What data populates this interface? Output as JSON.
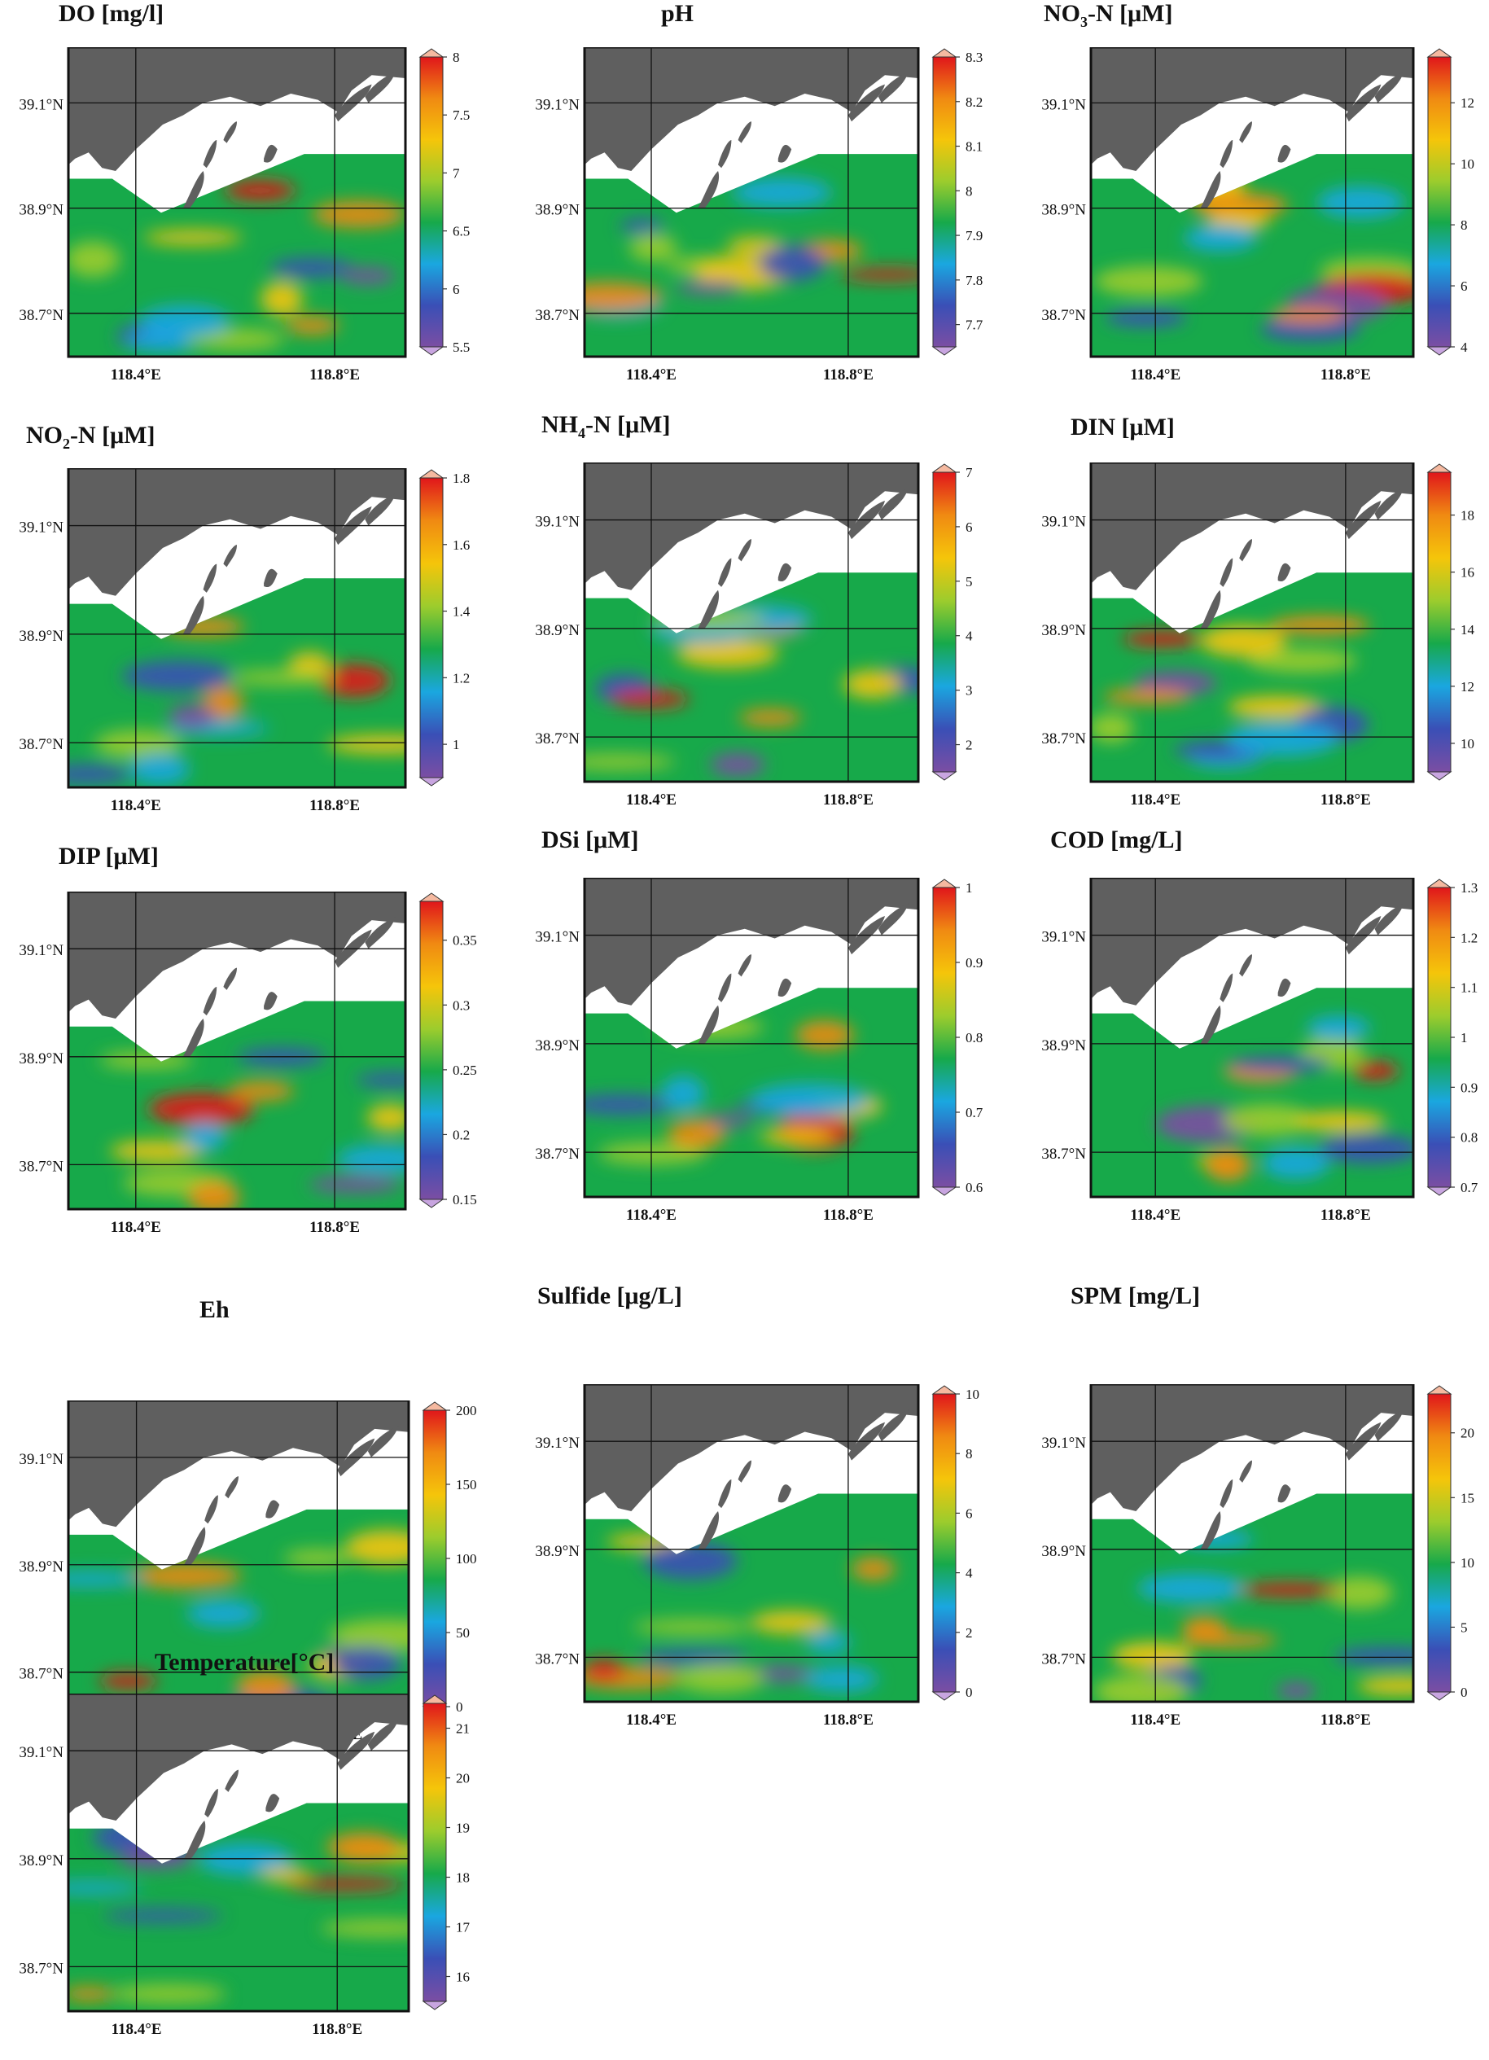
{
  "figure": {
    "colormap": [
      "#7b4ea3",
      "#3a4fb6",
      "#1aa7e0",
      "#17a94a",
      "#9ccc2d",
      "#f5c50a",
      "#f08a12",
      "#e0161b"
    ],
    "land_color": "#5f5f5f",
    "grid_color": "#111111",
    "lat_labels": [
      "39.1°N",
      "38.9°N",
      "38.7°N"
    ],
    "lon_labels": [
      "118.4°E",
      "118.8°E"
    ]
  },
  "panels": [
    {
      "id": "do",
      "title": "DO [mg/l]",
      "title_main": "DO [mg/l]",
      "title_sub": "",
      "title_rest": "",
      "colorbar_ticks": [
        "8",
        "7.5",
        "7",
        "6.5",
        "6",
        "5.5"
      ],
      "range": [
        5.5,
        8.0
      ]
    },
    {
      "id": "ph",
      "title": "pH",
      "title_main": "pH",
      "title_sub": "",
      "title_rest": "",
      "colorbar_ticks": [
        "8.3",
        "8.2",
        "8.1",
        "8",
        "7.9",
        "7.8",
        "7.7"
      ],
      "range": [
        7.65,
        8.3
      ]
    },
    {
      "id": "no3",
      "title": "NO3-N [μM]",
      "title_main": "NO",
      "title_sub": "3",
      "title_rest": "-N [μM]",
      "colorbar_ticks": [
        "12",
        "10",
        "8",
        "6",
        "4"
      ],
      "range": [
        4,
        13.5
      ]
    },
    {
      "id": "no2",
      "title": "NO2-N [μM]",
      "title_main": "NO",
      "title_sub": "2",
      "title_rest": "-N [μM]",
      "colorbar_ticks": [
        "1.8",
        "1.6",
        "1.4",
        "1.2",
        "1"
      ],
      "range": [
        0.9,
        1.8
      ]
    },
    {
      "id": "nh4",
      "title": "NH4-N [μM]",
      "title_main": "NH",
      "title_sub": "4",
      "title_rest": "-N [μM]",
      "colorbar_ticks": [
        "7",
        "6",
        "5",
        "4",
        "3",
        "2"
      ],
      "range": [
        1.5,
        7
      ]
    },
    {
      "id": "din",
      "title": "DIN [μM]",
      "title_main": "DIN [μM]",
      "title_sub": "",
      "title_rest": "",
      "colorbar_ticks": [
        "18",
        "16",
        "14",
        "12",
        "10"
      ],
      "range": [
        9,
        19.5
      ]
    },
    {
      "id": "dip",
      "title": "DIP [μM]",
      "title_main": "DIP [μM]",
      "title_sub": "",
      "title_rest": "",
      "colorbar_ticks": [
        "0.35",
        "0.3",
        "0.25",
        "0.2",
        "0.15"
      ],
      "range": [
        0.15,
        0.38
      ]
    },
    {
      "id": "dsi",
      "title": "DSi [μM]",
      "title_main": "DSi [μM]",
      "title_sub": "",
      "title_rest": "",
      "colorbar_ticks": [
        "1",
        "0.9",
        "0.8",
        "0.7",
        "0.6"
      ],
      "range": [
        0.6,
        1.0
      ]
    },
    {
      "id": "cod",
      "title": "COD [mg/L]",
      "title_main": "COD [mg/L]",
      "title_sub": "",
      "title_rest": "",
      "colorbar_ticks": [
        "1.3",
        "1.2",
        "1.1",
        "1",
        "0.9",
        "0.8",
        "0.7"
      ],
      "range": [
        0.7,
        1.3
      ]
    },
    {
      "id": "eh",
      "title": "Eh",
      "title_main": "Eh",
      "title_sub": "",
      "title_rest": "",
      "colorbar_ticks": [
        "200",
        "150",
        "100",
        "50",
        "0"
      ],
      "range": [
        0,
        200
      ]
    },
    {
      "id": "sulfide",
      "title": "Sulfide [μg/L]",
      "title_main": "Sulfide [μg/L]",
      "title_sub": "",
      "title_rest": "",
      "colorbar_ticks": [
        "10",
        "8",
        "6",
        "4",
        "2",
        "0"
      ],
      "range": [
        0,
        10
      ]
    },
    {
      "id": "spm",
      "title": "SPM [mg/L]",
      "title_main": "SPM [mg/L]",
      "title_sub": "",
      "title_rest": "",
      "colorbar_ticks": [
        "20",
        "15",
        "10",
        "5",
        "0"
      ],
      "range": [
        0,
        23
      ]
    },
    {
      "id": "temp",
      "title": "Temperature[°C]",
      "title_main": "Temperature[°C]",
      "title_sub": "",
      "title_rest": "",
      "colorbar_ticks": [
        "21",
        "20",
        "19",
        "18",
        "17",
        "16"
      ],
      "range": [
        15.5,
        21.5
      ]
    }
  ]
}
